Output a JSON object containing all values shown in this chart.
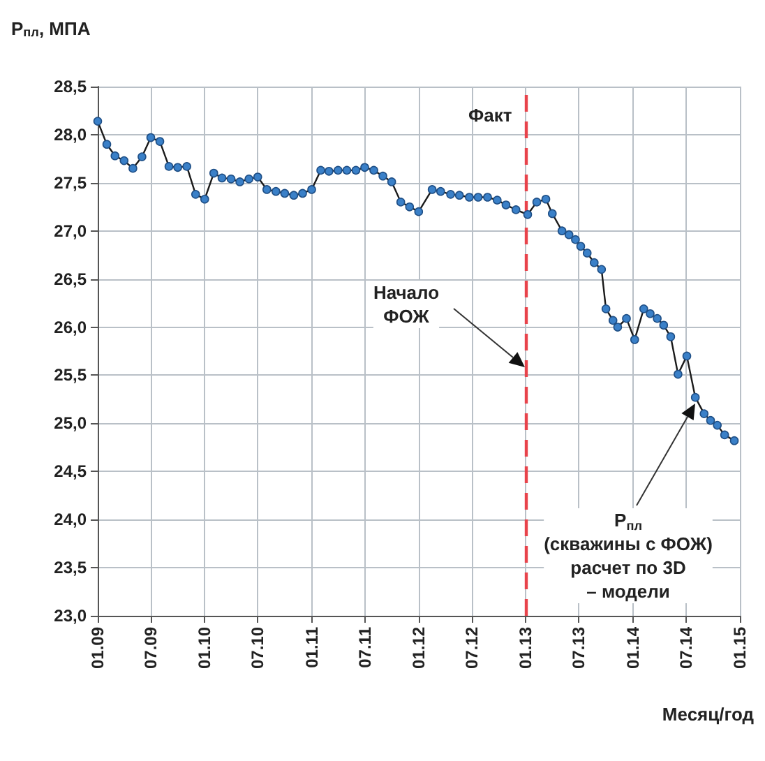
{
  "chart_data": {
    "type": "line",
    "ylabel": "Р$_{пл}$, МПА",
    "xlabel": "Месяц/год",
    "x": [
      "2009-01",
      "2009-02",
      "2009-03",
      "2009-04",
      "2009-05",
      "2009-06",
      "2009-07",
      "2009-08",
      "2009-09",
      "2009-10",
      "2009-11",
      "2009-12",
      "2010-01",
      "2010-02",
      "2010-03",
      "2010-04",
      "2010-05",
      "2010-06",
      "2010-07",
      "2010-08",
      "2010-09",
      "2010-10",
      "2010-11",
      "2010-12",
      "2011-01",
      "2011-02",
      "2011-03",
      "2011-04",
      "2011-05",
      "2011-06",
      "2011-07",
      "2011-08",
      "2011-09",
      "2011-10",
      "2011-11",
      "2011-12",
      "2012-01",
      "2012-02-16",
      "2012-03-16",
      "2012-04-19",
      "2012-05-19",
      "2012-06-22",
      "2012-07-22",
      "2012-08-23",
      "2012-09-25",
      "2012-10-25",
      "2012-11-28",
      "2013-01-07",
      "2013-02-07",
      "2013-03-10",
      "2013-04-01",
      "2013-05-04",
      "2013-05-28",
      "2013-06-19",
      "2013-07-07",
      "2013-07-29",
      "2013-08-22",
      "2013-09-16",
      "2013-10-01",
      "2013-10-25",
      "2013-11-10",
      "2013-12-10",
      "2014-01-07",
      "2014-02-07",
      "2014-03-01",
      "2014-03-25",
      "2014-04-16",
      "2014-05-10",
      "2014-06-04",
      "2014-07-04",
      "2014-08-02",
      "2014-09-01",
      "2014-09-23",
      "2014-10-16",
      "2014-11-10",
      "2014-12-13"
    ],
    "series": [
      {
        "color": "#3a80c8",
        "values": [
          28.14,
          27.9,
          27.78,
          27.73,
          27.65,
          27.77,
          27.97,
          27.93,
          27.67,
          27.66,
          27.67,
          27.38,
          27.33,
          27.6,
          27.55,
          27.54,
          27.51,
          27.54,
          27.56,
          27.43,
          27.41,
          27.39,
          27.37,
          27.39,
          27.43,
          27.63,
          27.62,
          27.63,
          27.63,
          27.63,
          27.66,
          27.63,
          27.57,
          27.51,
          27.3,
          27.25,
          27.2,
          27.43,
          27.41,
          27.38,
          27.37,
          27.35,
          27.35,
          27.35,
          27.32,
          27.27,
          27.22,
          27.17,
          27.3,
          27.33,
          27.18,
          27.0,
          26.96,
          26.91,
          26.84,
          26.77,
          26.67,
          26.6,
          26.19,
          26.07,
          26.0,
          26.09,
          25.87,
          26.19,
          26.14,
          26.09,
          26.02,
          25.9,
          25.51,
          25.7,
          25.27,
          25.1,
          25.03,
          24.98,
          24.88,
          24.82
        ]
      }
    ],
    "xlim": [
      "2009-01",
      "2015-01"
    ],
    "xticks": [
      {
        "value": "2009-01",
        "label": "01.09"
      },
      {
        "value": "2009-07",
        "label": "07.09"
      },
      {
        "value": "2010-01",
        "label": "01.10"
      },
      {
        "value": "2010-07",
        "label": "07.10"
      },
      {
        "value": "2011-01",
        "label": "01.11"
      },
      {
        "value": "2011-07",
        "label": "07.11"
      },
      {
        "value": "2012-01",
        "label": "01.12"
      },
      {
        "value": "2012-07",
        "label": "07.12"
      },
      {
        "value": "2013-01",
        "label": "01.13"
      },
      {
        "value": "2013-07",
        "label": "07.13"
      },
      {
        "value": "2014-01",
        "label": "01.14"
      },
      {
        "value": "2014-07",
        "label": "07.14"
      },
      {
        "value": "2015-01",
        "label": "01.15"
      }
    ],
    "ylim": [
      23.0,
      28.5
    ],
    "yticks": [
      {
        "value": 23.0,
        "label": "23,0"
      },
      {
        "value": 23.5,
        "label": "23,5"
      },
      {
        "value": 24.0,
        "label": "24,0"
      },
      {
        "value": 24.5,
        "label": "24,5"
      },
      {
        "value": 25.0,
        "label": "25,0"
      },
      {
        "value": 25.5,
        "label": "25,5"
      },
      {
        "value": 26.0,
        "label": "26,0"
      },
      {
        "value": 26.5,
        "label": "26,5"
      },
      {
        "value": 27.0,
        "label": "27,0"
      },
      {
        "value": 27.5,
        "label": "27,5"
      },
      {
        "value": 28.0,
        "label": "28,0"
      },
      {
        "value": 28.5,
        "label": "28,5"
      }
    ],
    "ref_lines": [
      {
        "axis": "x",
        "value": "2013-01",
        "label": "Факт",
        "color": "#e8434b",
        "line_style": "dashed"
      }
    ],
    "annotations": [
      "Начало\nФОЖ",
      "Р$_{пл}$\n(скважины с ФОЖ)\nрасчет по 3D\n– модели"
    ],
    "grid": true,
    "marker": "circle",
    "line_style": "solid"
  }
}
